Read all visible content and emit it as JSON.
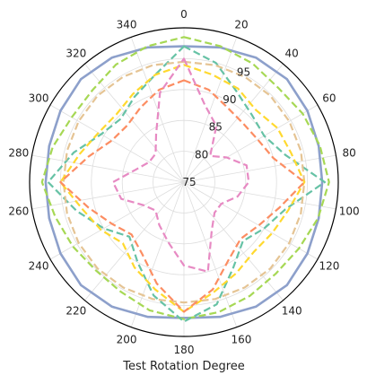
{
  "chart_data": {
    "type": "polar-line",
    "title": "",
    "xlabel": "Test Rotation Degree",
    "theta_direction": "clockwise",
    "theta_zero": "top",
    "theta_ticks": [
      0,
      20,
      40,
      60,
      80,
      100,
      120,
      140,
      160,
      180,
      200,
      220,
      240,
      260,
      280,
      300,
      320,
      340
    ],
    "theta_tick_labels": [
      "0",
      "20",
      "40",
      "60",
      "80",
      "100",
      "120",
      "140",
      "160",
      "180",
      "200",
      "220",
      "240",
      "260",
      "280",
      "300",
      "320",
      "340"
    ],
    "r_ticks": [
      75,
      80,
      85,
      90,
      95
    ],
    "r_tick_labels": [
      "75",
      "80",
      "85",
      "90",
      "95"
    ],
    "rlim": [
      75,
      100
    ],
    "grid": true,
    "legend": "none",
    "theta": [
      0,
      15,
      30,
      45,
      60,
      75,
      90,
      105,
      120,
      135,
      150,
      165,
      180,
      195,
      210,
      225,
      240,
      255,
      270,
      285,
      300,
      315,
      330,
      345
    ],
    "series": [
      {
        "color": "#8da0cb",
        "style": "solid",
        "values": [
          97.0,
          97.6,
          98.3,
          98.6,
          98.1,
          97.6,
          97.4,
          97.6,
          98.1,
          98.6,
          98.3,
          97.6,
          97.0,
          97.6,
          98.3,
          98.6,
          98.1,
          97.6,
          97.4,
          97.6,
          98.1,
          98.6,
          98.3,
          97.6
        ]
      },
      {
        "color": "#a6d854",
        "style": "dashed",
        "values": [
          98.5,
          97.8,
          97.2,
          96.6,
          97.2,
          97.8,
          98.5,
          97.5,
          96.5,
          96.0,
          96.3,
          96.8,
          97.2,
          96.5,
          95.5,
          95.2,
          95.8,
          96.6,
          98.0,
          97.0,
          96.0,
          96.0,
          97.0,
          97.8
        ]
      },
      {
        "color": "#66c2a5",
        "style": "dashed",
        "values": [
          97.0,
          95.0,
          92.0,
          90.5,
          90.0,
          92.0,
          97.8,
          92.0,
          90.0,
          88.5,
          91.0,
          95.5,
          97.6,
          94.0,
          90.0,
          87.5,
          90.0,
          93.0,
          97.0,
          93.5,
          90.5,
          89.5,
          91.0,
          93.0
        ]
      },
      {
        "color": "#e5c494",
        "style": "dashed",
        "values": [
          94.5,
          94.6,
          94.7,
          94.8,
          94.7,
          94.6,
          94.5,
          94.6,
          94.7,
          94.8,
          94.7,
          94.6,
          94.5,
          94.6,
          94.7,
          94.8,
          94.7,
          94.6,
          94.5,
          94.6,
          94.7,
          94.8,
          94.7,
          94.6
        ]
      },
      {
        "color": "#ffd92f",
        "style": "dashed",
        "values": [
          94.0,
          93.0,
          92.5,
          91.5,
          92.5,
          93.0,
          94.5,
          92.5,
          91.5,
          91.0,
          92.0,
          93.5,
          96.0,
          93.0,
          91.0,
          89.0,
          90.5,
          92.0,
          95.0,
          92.5,
          91.0,
          90.5,
          91.5,
          93.0
        ]
      },
      {
        "color": "#fc8d62",
        "style": "dashed",
        "values": [
          91.5,
          90.5,
          89.0,
          88.5,
          88.8,
          90.0,
          94.5,
          91.0,
          89.0,
          88.0,
          89.5,
          93.0,
          96.0,
          92.0,
          88.5,
          87.0,
          88.5,
          91.0,
          95.0,
          91.0,
          88.5,
          88.0,
          89.0,
          90.5
        ]
      },
      {
        "color": "#e78ac3",
        "style": "dashed",
        "values": [
          95.0,
          88.0,
          85.5,
          81.0,
          83.0,
          85.5,
          85.5,
          84.0,
          82.0,
          82.0,
          84.0,
          90.0,
          88.5,
          85.0,
          83.0,
          81.5,
          82.5,
          85.5,
          86.5,
          83.0,
          81.5,
          81.5,
          84.0,
          90.0
        ]
      }
    ]
  }
}
